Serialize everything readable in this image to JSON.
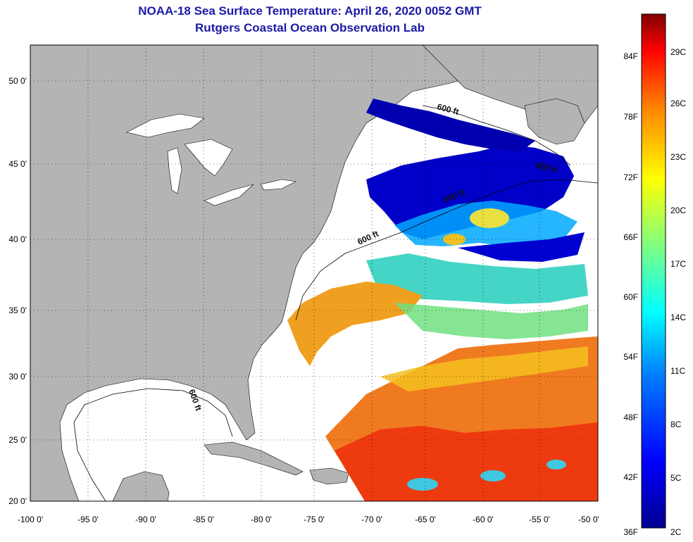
{
  "header": {
    "title": "NOAA-18 Sea Surface Temperature:  April 26, 2020 0052 GMT",
    "subtitle": "Rutgers Coastal Ocean Observation Lab"
  },
  "map": {
    "lon_range": [
      -100,
      -50
    ],
    "lat_range": [
      20,
      52.5
    ],
    "lon_ticks": [
      "-100 0'",
      "-95 0'",
      "-90 0'",
      "-85 0'",
      "-80 0'",
      "-75 0'",
      "-70 0'",
      "-65 0'",
      "-60 0'",
      "-55 0'",
      "-50 0'"
    ],
    "lat_ticks": [
      "50 0'",
      "45 0'",
      "40 0'",
      "35 0'",
      "30 0'",
      "25 0'",
      "20 0'"
    ],
    "contour_label": "600 ft",
    "colors": {
      "land": "#b4b4b4",
      "no_data": "#ffffff",
      "grid": "#000000"
    }
  },
  "colorbar": {
    "fahrenheit_labels": [
      "84F",
      "78F",
      "72F",
      "66F",
      "60F",
      "54F",
      "48F",
      "42F",
      "36F"
    ],
    "celsius_labels": [
      "29C",
      "26C",
      "23C",
      "20C",
      "17C",
      "14C",
      "11C",
      "8C",
      "5C",
      "2C"
    ],
    "range_c": [
      2,
      31
    ],
    "colors": [
      "#00008f",
      "#0000ff",
      "#0080ff",
      "#00ffff",
      "#80ff80",
      "#ffff00",
      "#ff8000",
      "#ff0000",
      "#800000"
    ]
  }
}
